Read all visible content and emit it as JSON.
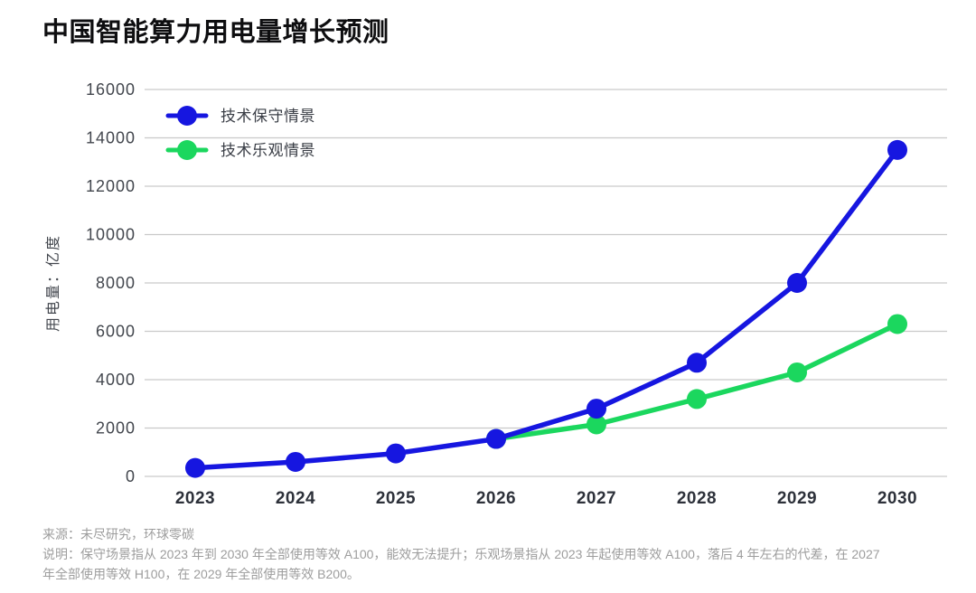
{
  "title": "中国智能算力用电量增长预测",
  "footnotes": {
    "source": "来源：未尽研究，环球零碳",
    "description_lines": [
      "说明：保守场景指从 2023 年到 2030 年全部使用等效 A100，能效无法提升；乐观场景指从 2023 年起使用等效 A100，落后 4 年左右的代差，在 2027",
      "年全部使用等效 H100，在 2029 年全部使用等效 B200。"
    ]
  },
  "chart_data": {
    "type": "line",
    "title": "中国智能算力用电量增长预测",
    "xlabel": "",
    "ylabel": "用电量：亿度",
    "categories": [
      "2023",
      "2024",
      "2025",
      "2026",
      "2027",
      "2028",
      "2029",
      "2030"
    ],
    "ylim": [
      0,
      16000
    ],
    "yticks": [
      0,
      2000,
      4000,
      6000,
      8000,
      10000,
      12000,
      14000,
      16000
    ],
    "grid": "horizontal",
    "gridline_color": "#c9c9c9",
    "legend_position": "top-left-inside",
    "marker": "circle",
    "series": [
      {
        "name": "技术保守情景",
        "color": "#1616e0",
        "values": [
          350,
          600,
          950,
          1550,
          2800,
          4700,
          8000,
          13500
        ]
      },
      {
        "name": "技术乐观情景",
        "color": "#1bd75e",
        "values": [
          null,
          null,
          null,
          1550,
          2150,
          3200,
          4300,
          6300
        ]
      }
    ]
  }
}
